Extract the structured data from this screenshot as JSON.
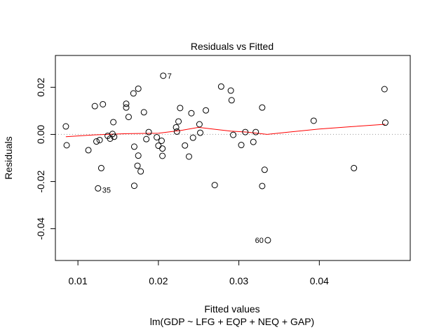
{
  "chart_data": {
    "type": "scatter",
    "title": "Residuals vs Fitted",
    "xlabel": "Fitted values",
    "subtitle": "lm(GDP ~ LFG + EQP + NEQ + GAP)",
    "ylabel": "Residuals",
    "xlim": [
      0.0072,
      0.0513
    ],
    "ylim": [
      -0.0535,
      0.0335
    ],
    "x_ticks": [
      {
        "value": 0.01,
        "label": "0.01"
      },
      {
        "value": 0.02,
        "label": "0.02"
      },
      {
        "value": 0.03,
        "label": "0.03"
      },
      {
        "value": 0.04,
        "label": "0.04"
      }
    ],
    "y_ticks": [
      {
        "value": -0.04,
        "label": "-0.04"
      },
      {
        "value": -0.02,
        "label": "-0.02"
      },
      {
        "value": 0.0,
        "label": "0.00"
      },
      {
        "value": 0.02,
        "label": "0.02"
      }
    ],
    "reference_line": {
      "y": 0,
      "style": "dotted",
      "color": "#999999"
    },
    "points": [
      {
        "x": 0.0085,
        "y": 0.0034
      },
      {
        "x": 0.0086,
        "y": -0.0046
      },
      {
        "x": 0.0113,
        "y": -0.0067
      },
      {
        "x": 0.0121,
        "y": 0.012
      },
      {
        "x": 0.0123,
        "y": -0.003
      },
      {
        "x": 0.0125,
        "y": -0.0229
      },
      {
        "x": 0.0127,
        "y": -0.0024
      },
      {
        "x": 0.0129,
        "y": -0.0143
      },
      {
        "x": 0.0131,
        "y": 0.0128
      },
      {
        "x": 0.0137,
        "y": -0.0006
      },
      {
        "x": 0.014,
        "y": -0.0018
      },
      {
        "x": 0.0143,
        "y": 0.0002
      },
      {
        "x": 0.0145,
        "y": -0.001
      },
      {
        "x": 0.0144,
        "y": 0.0052
      },
      {
        "x": 0.016,
        "y": 0.013
      },
      {
        "x": 0.016,
        "y": 0.0114
      },
      {
        "x": 0.0163,
        "y": 0.0074
      },
      {
        "x": 0.0169,
        "y": 0.0174
      },
      {
        "x": 0.017,
        "y": -0.0052
      },
      {
        "x": 0.017,
        "y": -0.0218
      },
      {
        "x": 0.0174,
        "y": -0.0133
      },
      {
        "x": 0.0175,
        "y": 0.0194
      },
      {
        "x": 0.0175,
        "y": -0.009
      },
      {
        "x": 0.0178,
        "y": -0.0157
      },
      {
        "x": 0.0182,
        "y": 0.0094
      },
      {
        "x": 0.0185,
        "y": -0.002
      },
      {
        "x": 0.0188,
        "y": 0.001
      },
      {
        "x": 0.0198,
        "y": -0.0012
      },
      {
        "x": 0.02,
        "y": -0.0048
      },
      {
        "x": 0.0204,
        "y": -0.0027
      },
      {
        "x": 0.0205,
        "y": -0.006
      },
      {
        "x": 0.0205,
        "y": -0.0091
      },
      {
        "x": 0.0206,
        "y": 0.0249,
        "label": "7"
      },
      {
        "x": 0.0222,
        "y": 0.003
      },
      {
        "x": 0.0223,
        "y": 0.0012
      },
      {
        "x": 0.0225,
        "y": 0.0055
      },
      {
        "x": 0.0227,
        "y": 0.0112
      },
      {
        "x": 0.0233,
        "y": -0.0047
      },
      {
        "x": 0.0238,
        "y": -0.0094
      },
      {
        "x": 0.0241,
        "y": 0.009
      },
      {
        "x": 0.0243,
        "y": -0.0014
      },
      {
        "x": 0.0251,
        "y": 0.0043
      },
      {
        "x": 0.0252,
        "y": 0.0007
      },
      {
        "x": 0.0259,
        "y": 0.0102
      },
      {
        "x": 0.027,
        "y": -0.0215
      },
      {
        "x": 0.0278,
        "y": 0.0203
      },
      {
        "x": 0.029,
        "y": 0.0186
      },
      {
        "x": 0.0291,
        "y": 0.0145
      },
      {
        "x": 0.0293,
        "y": -0.0002
      },
      {
        "x": 0.0303,
        "y": -0.0045
      },
      {
        "x": 0.0308,
        "y": 0.001
      },
      {
        "x": 0.0318,
        "y": -0.0032
      },
      {
        "x": 0.0321,
        "y": 0.001
      },
      {
        "x": 0.0329,
        "y": 0.0114
      },
      {
        "x": 0.0329,
        "y": -0.0219
      },
      {
        "x": 0.0332,
        "y": -0.015
      },
      {
        "x": 0.0336,
        "y": -0.0449,
        "label": "60"
      },
      {
        "x": 0.0393,
        "y": 0.0058
      },
      {
        "x": 0.0443,
        "y": -0.0143
      },
      {
        "x": 0.0481,
        "y": 0.0192
      },
      {
        "x": 0.0482,
        "y": 0.005
      }
    ],
    "point_labels": [
      {
        "text": "35",
        "x": 0.0125,
        "y": -0.0229
      }
    ],
    "smooth_line": {
      "color": "#ff0000",
      "x": [
        0.0085,
        0.012,
        0.016,
        0.02,
        0.023,
        0.025,
        0.027,
        0.029,
        0.031,
        0.0335,
        0.036,
        0.04,
        0.044,
        0.0482
      ],
      "y": [
        -0.001,
        -0.0002,
        0.0003,
        0.0005,
        0.0018,
        0.003,
        0.0022,
        0.0014,
        0.001,
        0.0,
        0.0009,
        0.0023,
        0.0033,
        0.0043
      ]
    },
    "grid": false,
    "legend": "none"
  }
}
